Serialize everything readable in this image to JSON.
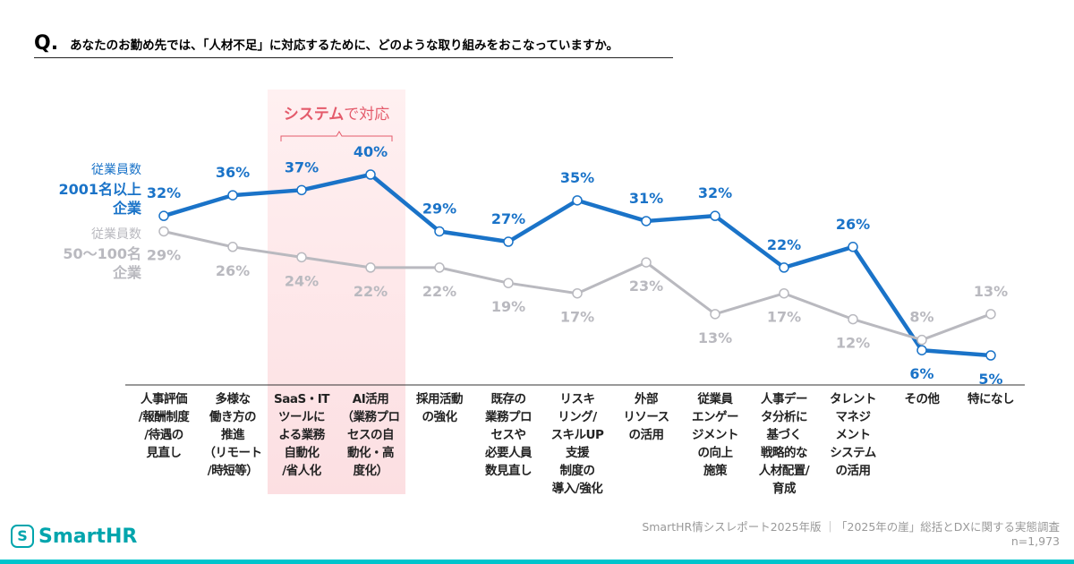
{
  "chart_data": {
    "type": "line",
    "question_marker": "Q.",
    "title": "あなたのお勤め先では、「人材不足」に対応するために、どのような取り組みをおこなっていますか。",
    "highlight": {
      "strong": "システム",
      "rest": "で対応"
    },
    "categories": [
      "人事評価\n/報酬制度\n/待遇の\n見直し",
      "多様な\n働き方の\n推進\n（リモート\n/時短等）",
      "SaaS・IT\nツールに\nよる業務\n自動化\n/省人化",
      "AI活用\n（業務プロ\nセスの自\n動化・高\n度化）",
      "採用活動\nの強化",
      "既存の\n業務プロ\nセスや\n必要人員\n数見直し",
      "リスキ\nリング/\nスキルUP\n支援\n制度の\n導入/強化",
      "外部\nリソース\nの活用",
      "従業員\nエンゲー\nジメント\nの向上\n施策",
      "人事デー\nタ分析に\n基づく\n戦略的な\n人材配置/\n育成",
      "タレント\nマネジ\nメント\nシステム\nの活用",
      "その他",
      "特になし"
    ],
    "series": [
      {
        "name": "2001名以上\n企業",
        "name_prefix": "従業員数",
        "color": "#1a73c8",
        "values": [
          32,
          36,
          37,
          40,
          29,
          27,
          35,
          31,
          32,
          22,
          26,
          6,
          5
        ],
        "value_labels": [
          "32%",
          "36%",
          "37%",
          "40%",
          "29%",
          "27%",
          "35%",
          "31%",
          "32%",
          "22%",
          "26%",
          "6%",
          "5%"
        ]
      },
      {
        "name": "50〜100名\n企業",
        "name_prefix": "従業員数",
        "color": "#b9b9bf",
        "values": [
          29,
          26,
          24,
          22,
          22,
          19,
          17,
          23,
          13,
          17,
          12,
          8,
          13
        ],
        "value_labels": [
          "29%",
          "26%",
          "24%",
          "22%",
          "22%",
          "19%",
          "17%",
          "23%",
          "13%",
          "17%",
          "12%",
          "8%",
          "13%"
        ]
      }
    ],
    "source": "SmartHR情シスレポート2025年版 ｜「2025年の崖」総括とDXに関する実態調査",
    "sample_size": "n=1,973",
    "logo": "SmartHR"
  }
}
